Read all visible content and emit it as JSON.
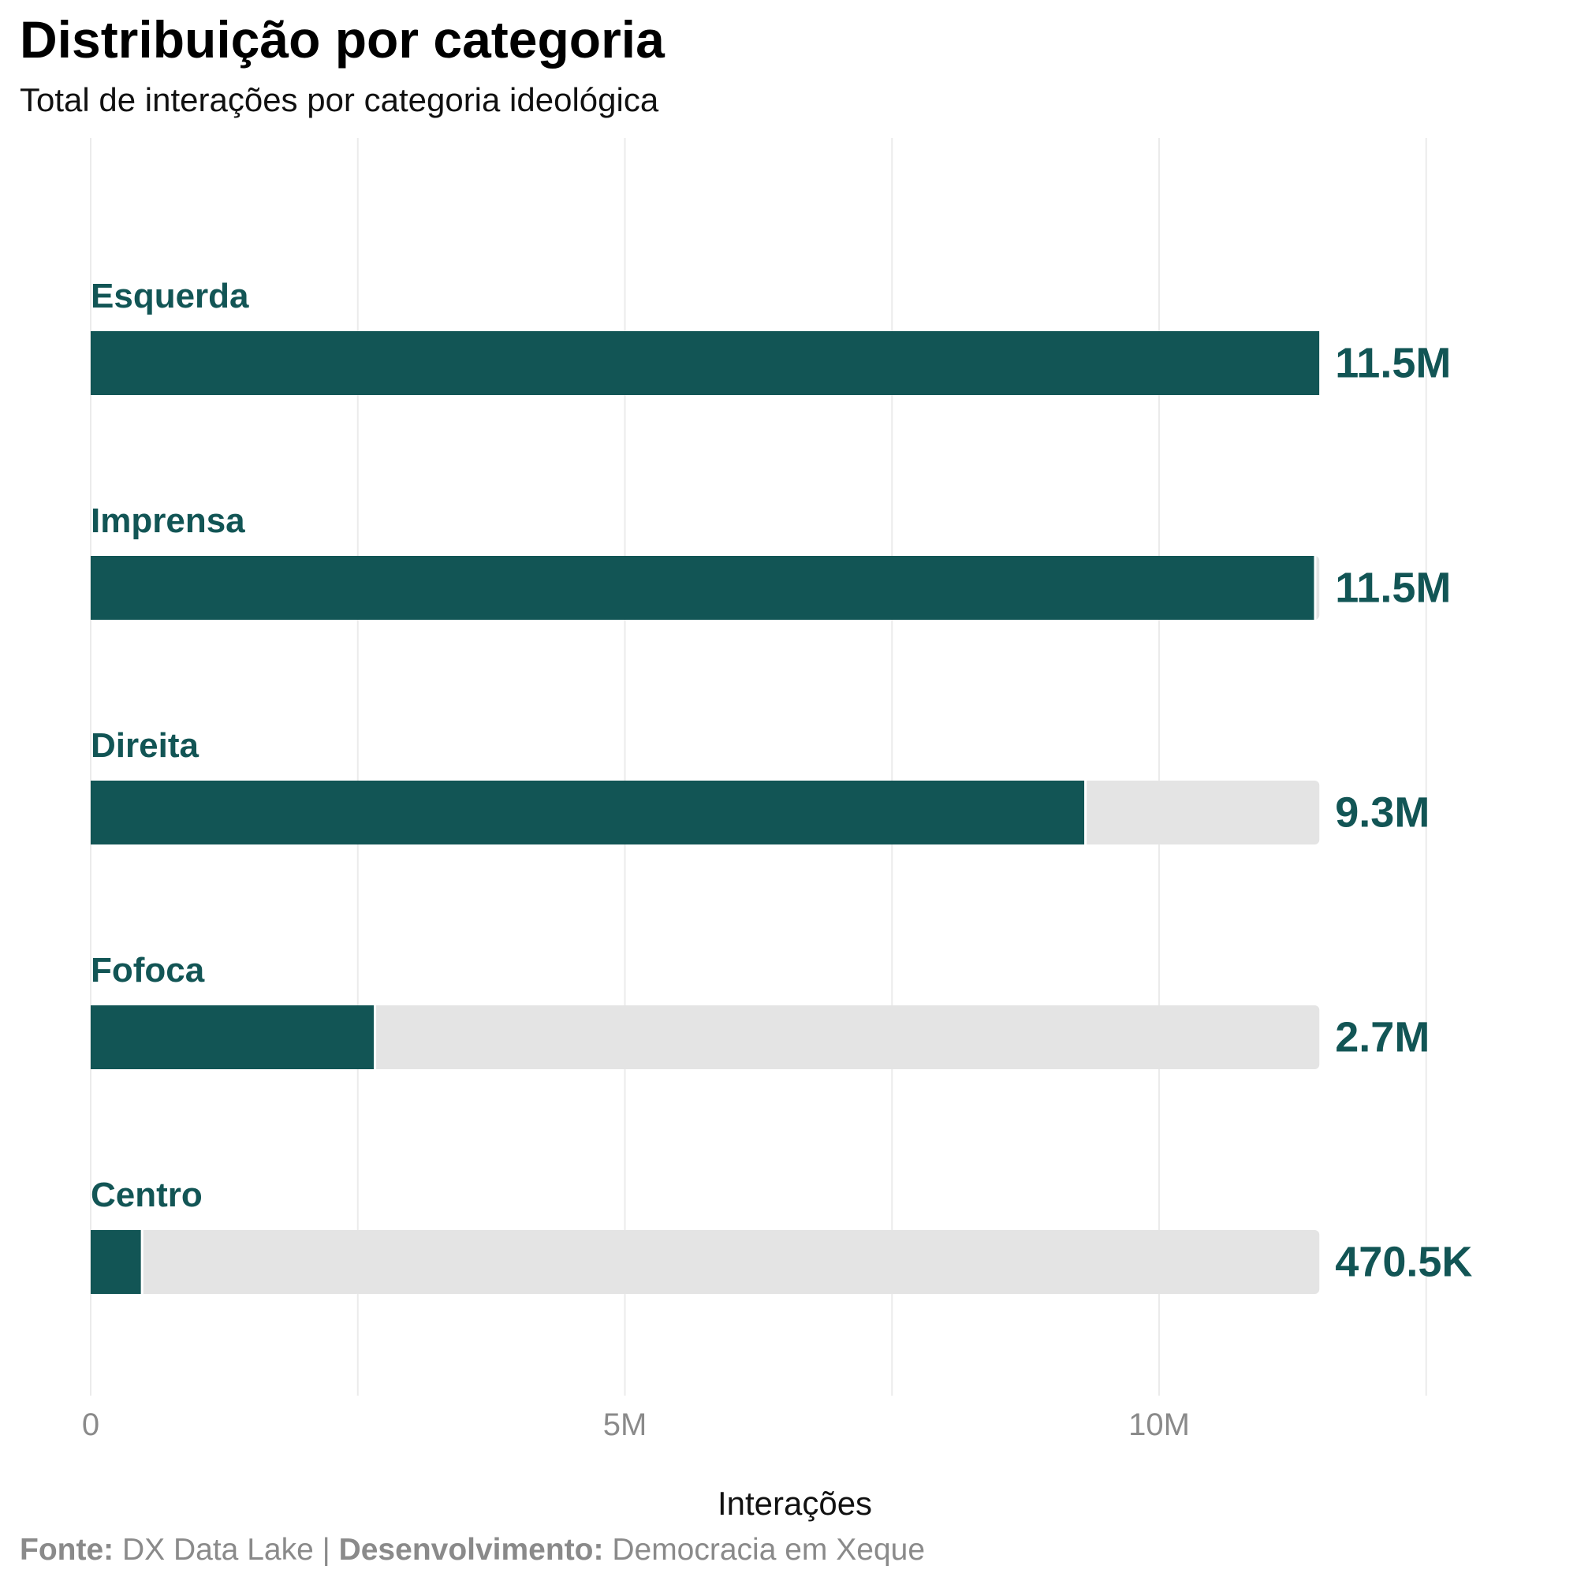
{
  "colors": {
    "bar": "#125555",
    "track": "#e4e4e4",
    "grid": "#ebebeb",
    "tick": "#8a8a8a",
    "caption": "#8a8a8a"
  },
  "chart_data": {
    "type": "bar",
    "orientation": "horizontal",
    "title": "Distribuição por categoria",
    "subtitle": "Total de interações por categoria ideológica",
    "xlabel": "Interações",
    "ylabel": "",
    "xlim": [
      0,
      12500000
    ],
    "xticks": [
      {
        "value": 0,
        "label": "0"
      },
      {
        "value": 5000000,
        "label": "5M"
      },
      {
        "value": 10000000,
        "label": "10M"
      }
    ],
    "gridlines": [
      2500000,
      7500000,
      12500000
    ],
    "track_max": 11500000,
    "grid": true,
    "categories": [
      "Esquerda",
      "Imprensa",
      "Direita",
      "Fofoca",
      "Centro"
    ],
    "values": [
      11500000,
      11450000,
      9300000,
      2650000,
      470500
    ],
    "value_labels": [
      "11.5M",
      "11.5M",
      "9.3M",
      "2.7M",
      "470.5K"
    ]
  },
  "caption": {
    "source_label": "Fonte:",
    "source_value": " DX Data Lake | ",
    "dev_label": "Desenvolvimento:",
    "dev_value": " Democracia em Xeque"
  }
}
